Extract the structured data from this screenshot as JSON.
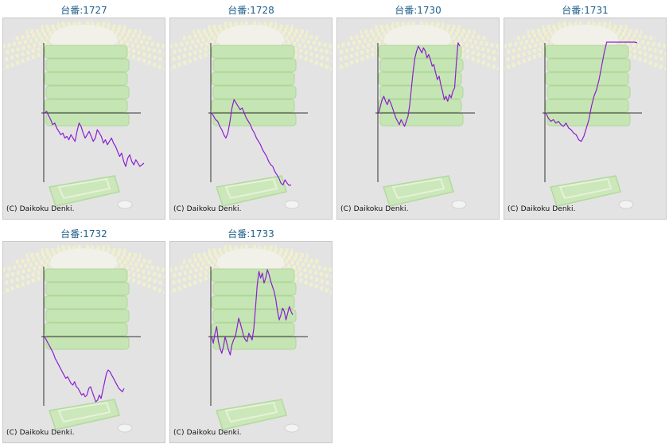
{
  "copyright": "(C) Daikoku Denki.",
  "colors": {
    "line": "#8a1fd0",
    "axis": "#333333",
    "title": "#1f5f8b",
    "panel_bg": "#e3e3e3",
    "art": "#b9e3a0"
  },
  "machines": [
    {
      "title": "台番:1727"
    },
    {
      "title": "台番:1728"
    },
    {
      "title": "台番:1730"
    },
    {
      "title": "台番:1731"
    },
    {
      "title": "台番:1732"
    },
    {
      "title": "台番:1733"
    }
  ],
  "chart_data": [
    {
      "type": "line",
      "series": [
        {
          "y": [
            0,
            2,
            -3,
            -8,
            -14,
            -12,
            -18,
            -22,
            -26,
            -24,
            -30,
            -28,
            -32,
            -26,
            -30,
            -34,
            -22,
            -12,
            -16,
            -24,
            -30,
            -26,
            -22,
            -28,
            -34,
            -30,
            -20,
            -24,
            -28,
            -36,
            -32,
            -38,
            -34,
            -30,
            -36,
            -40,
            -46,
            -52,
            -48,
            -58,
            -64,
            -54,
            -50,
            -58,
            -62,
            -56,
            -60,
            -64,
            -62,
            -60
          ]
        }
      ]
    },
    {
      "type": "line",
      "series": [
        {
          "y": [
            0,
            -4,
            -8,
            -10,
            -16,
            -20,
            -26,
            -30,
            -24,
            -10,
            6,
            16,
            12,
            8,
            4,
            6,
            0,
            -6,
            -10,
            -14,
            -20,
            -24,
            -30,
            -34,
            -38,
            -44,
            -48,
            -52,
            -58,
            -62,
            -64,
            -70,
            -74,
            -78,
            -84,
            -86,
            -80,
            -84,
            -88,
            -86
          ]
        }
      ]
    },
    {
      "type": "line",
      "series": [
        {
          "y": [
            0,
            8,
            16,
            20,
            14,
            10,
            16,
            12,
            6,
            0,
            -6,
            -10,
            -14,
            -8,
            -12,
            -16,
            -10,
            -4,
            10,
            30,
            50,
            66,
            74,
            80,
            76,
            72,
            78,
            74,
            66,
            70,
            64,
            56,
            58,
            48,
            40,
            44,
            34,
            26,
            16,
            20,
            14,
            22,
            18,
            26,
            30,
            60,
            84,
            80
          ]
        }
      ]
    },
    {
      "type": "line",
      "series": [
        {
          "y": [
            0,
            -6,
            -10,
            -8,
            -12,
            -10,
            -14,
            -16,
            -12,
            -18,
            -20,
            -24,
            -26,
            -32,
            -34,
            -28,
            -18,
            -8,
            8,
            20,
            28,
            40,
            56,
            72,
            88,
            92,
            100,
            98,
            96,
            92,
            96,
            94,
            88,
            86,
            90,
            86,
            84
          ]
        }
      ]
    },
    {
      "type": "line",
      "series": [
        {
          "y": [
            0,
            -4,
            -8,
            -12,
            -16,
            -20,
            -26,
            -30,
            -34,
            -38,
            -42,
            -46,
            -50,
            -48,
            -52,
            -56,
            -58,
            -54,
            -60,
            -62,
            -66,
            -70,
            -68,
            -72,
            -70,
            -62,
            -60,
            -66,
            -72,
            -78,
            -76,
            -70,
            -74,
            -64,
            -54,
            -44,
            -40,
            -42,
            -46,
            -50,
            -54,
            -58,
            -62,
            -64,
            -66,
            -62
          ]
        }
      ]
    },
    {
      "type": "line",
      "series": [
        {
          "y": [
            0,
            -8,
            4,
            12,
            -6,
            -14,
            -20,
            -12,
            0,
            -8,
            -16,
            -22,
            -10,
            -4,
            0,
            10,
            22,
            16,
            8,
            0,
            -4,
            -6,
            4,
            0,
            -4,
            10,
            36,
            62,
            78,
            70,
            76,
            64,
            70,
            80,
            74,
            66,
            60,
            54,
            44,
            30,
            20,
            26,
            34,
            30,
            20,
            28,
            36,
            30,
            26
          ]
        }
      ]
    }
  ]
}
